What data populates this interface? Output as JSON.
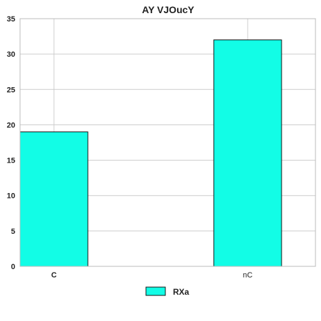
{
  "chart_data": {
    "type": "bar",
    "title": "AY VJOucY",
    "xlabel": "",
    "ylabel": "",
    "categories": [
      "C",
      "nC"
    ],
    "series": [
      {
        "name": "RXa",
        "values": [
          19,
          32
        ],
        "color": "#12fde6"
      }
    ],
    "ylim": [
      0,
      35
    ],
    "yticks": [
      0,
      5,
      10,
      15,
      20,
      25,
      30,
      35
    ],
    "grid": true,
    "legend_position": "bottom-center"
  },
  "colors": {
    "bar_edge": "#111111",
    "grid": "#cccccc",
    "axes_edge": "#bbbbbb"
  }
}
